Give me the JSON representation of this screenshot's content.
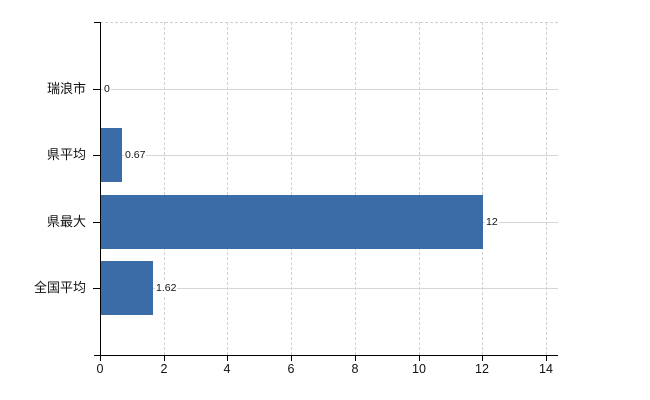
{
  "chart_data": {
    "type": "bar",
    "orientation": "horizontal",
    "title": "",
    "categories": [
      "瑞浪市",
      "県平均",
      "県最大",
      "全国平均"
    ],
    "values": [
      0,
      0.67,
      12,
      1.62
    ],
    "value_labels": [
      "0",
      "0.67",
      "12",
      "1.62"
    ],
    "x_ticks": [
      0,
      2,
      4,
      6,
      8,
      10,
      12,
      14
    ],
    "xlim": [
      0,
      14
    ],
    "grid": true,
    "legend": false,
    "colors": {
      "bar": "#3b6ca8",
      "grid": "#d6d6d6",
      "grid_dashed": "#cfd3cf",
      "axis": "#000000",
      "text": "#111111",
      "background": "#ffffff"
    }
  }
}
